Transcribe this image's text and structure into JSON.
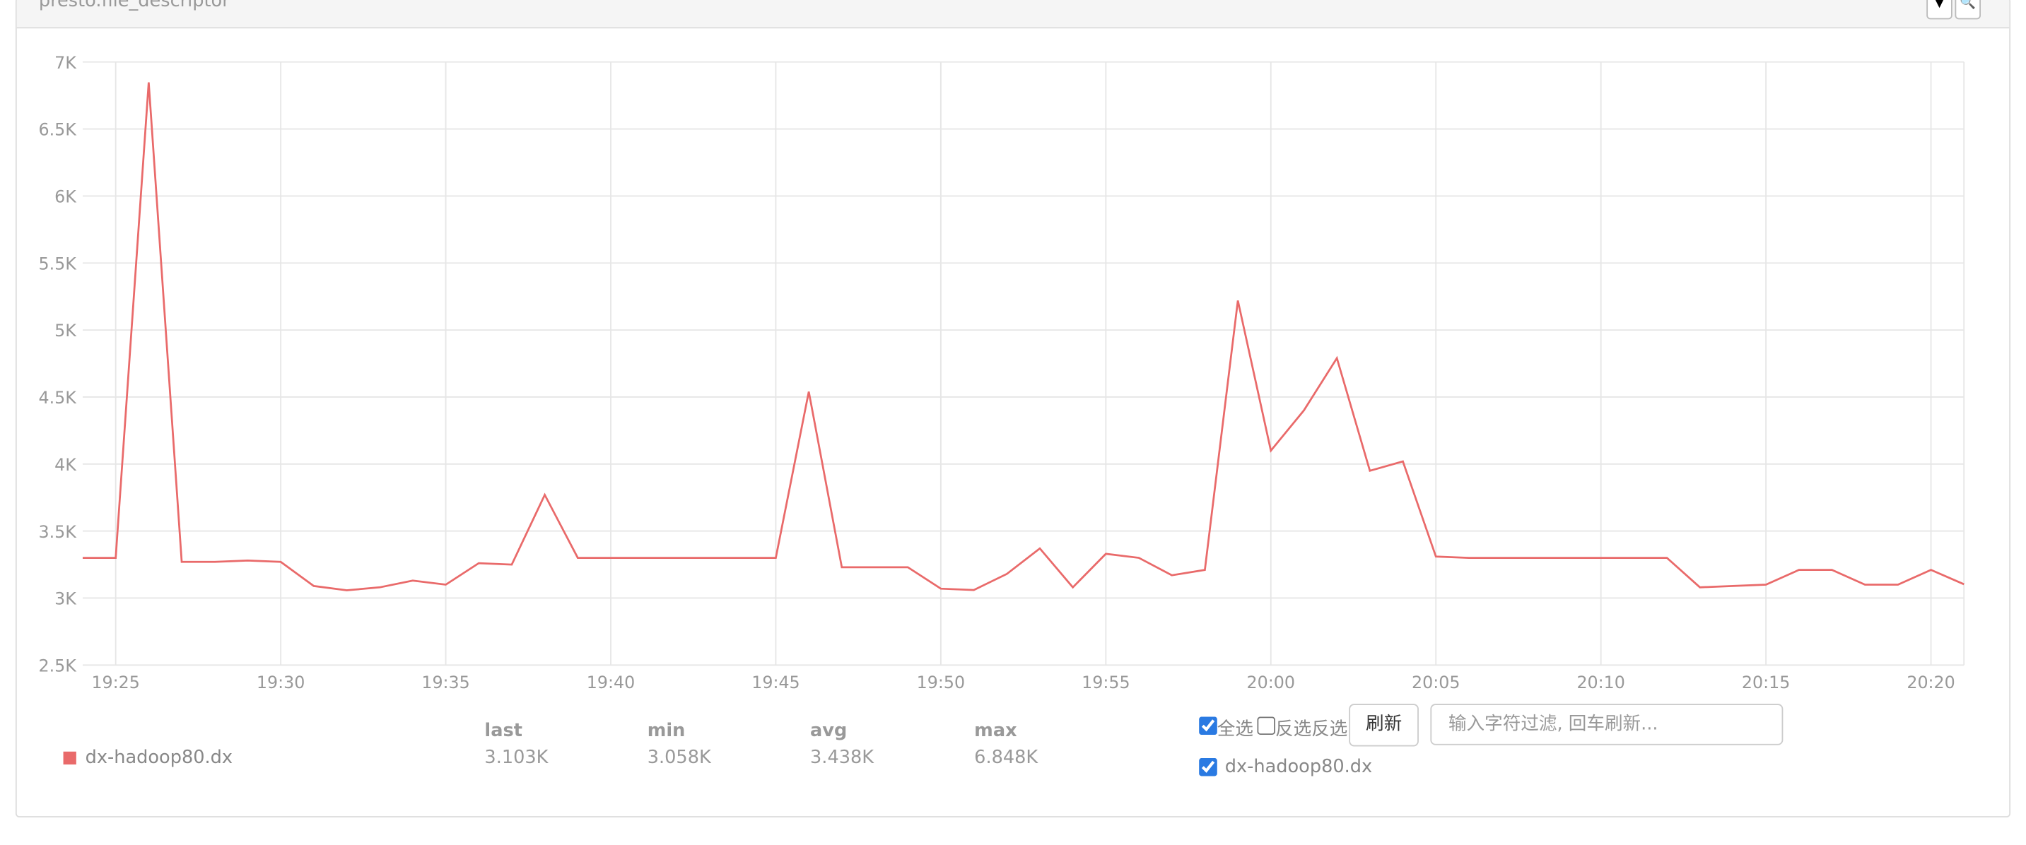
{
  "header": {
    "title": "presto.file_descriptor"
  },
  "chart_data": {
    "type": "line",
    "categories": [
      null,
      "19:25",
      null,
      null,
      null,
      null,
      "19:30",
      null,
      null,
      null,
      null,
      "19:35",
      null,
      null,
      null,
      null,
      "19:40",
      null,
      null,
      null,
      null,
      "19:45",
      null,
      null,
      null,
      null,
      "19:50",
      null,
      null,
      null,
      null,
      "19:55",
      null,
      null,
      null,
      null,
      "20:00",
      null,
      null,
      null,
      null,
      "20:05",
      null,
      null,
      null,
      null,
      "20:10",
      null,
      null,
      null,
      null,
      "20:15",
      null,
      null,
      null,
      null,
      "20:20",
      null
    ],
    "series": [
      {
        "name": "dx-hadoop80.dx",
        "color": "#e96a6a",
        "values": [
          3300,
          3300,
          6848,
          3270,
          3270,
          3280,
          3270,
          3090,
          3058,
          3080,
          3130,
          3100,
          3260,
          3250,
          3770,
          3300,
          3300,
          3300,
          3300,
          3300,
          3300,
          3300,
          4540,
          3230,
          3230,
          3230,
          3070,
          3060,
          3180,
          3370,
          3080,
          3330,
          3300,
          3170,
          3210,
          5220,
          4100,
          4400,
          4790,
          3950,
          4020,
          3310,
          3300,
          3300,
          3300,
          3300,
          3300,
          3300,
          3300,
          3080,
          3090,
          3100,
          3210,
          3210,
          3100,
          3100,
          3210,
          3103
        ]
      }
    ],
    "ylim": [
      2500,
      7000
    ],
    "yticks": [
      {
        "value": 2500,
        "label": "2.5K"
      },
      {
        "value": 3000,
        "label": "3K"
      },
      {
        "value": 3500,
        "label": "3.5K"
      },
      {
        "value": 4000,
        "label": "4K"
      },
      {
        "value": 4500,
        "label": "4.5K"
      },
      {
        "value": 5000,
        "label": "5K"
      },
      {
        "value": 5500,
        "label": "5.5K"
      },
      {
        "value": 6000,
        "label": "6K"
      },
      {
        "value": 6500,
        "label": "6.5K"
      },
      {
        "value": 7000,
        "label": "7K"
      }
    ],
    "grid": true
  },
  "stats": {
    "columns": [
      "last",
      "min",
      "avg",
      "max"
    ],
    "rows": [
      [
        "3.103K",
        "3.058K",
        "3.438K",
        "6.848K"
      ]
    ]
  },
  "controls": {
    "select_all": "全选",
    "invert": "反选反选",
    "refresh": "刷新",
    "filter_placeholder": "输入字符过滤, 回车刷新..."
  }
}
